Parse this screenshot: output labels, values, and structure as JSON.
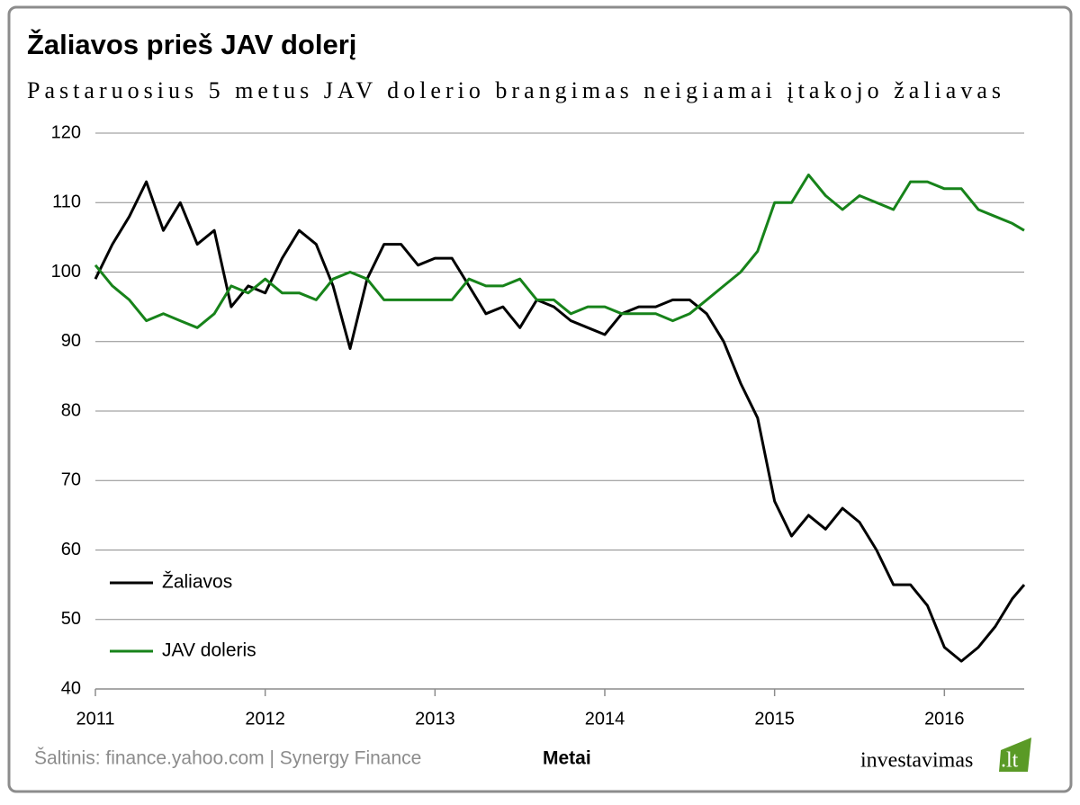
{
  "chart_data": {
    "type": "line",
    "title": "Žaliavos prieš JAV dolerį",
    "subtitle": "Pastaruosius 5 metus JAV dolerio brangimas neigiamai įtakojo žaliavas",
    "x_label": "Metai",
    "source": "Šaltinis: finance.yahoo.com | Synergy Finance",
    "brand": "investavimas",
    "brand_tld": ".lt",
    "x": [
      2011.0,
      2011.1,
      2011.2,
      2011.3,
      2011.4,
      2011.5,
      2011.6,
      2011.7,
      2011.8,
      2011.9,
      2012.0,
      2012.1,
      2012.2,
      2012.3,
      2012.4,
      2012.5,
      2012.6,
      2012.7,
      2012.8,
      2012.9,
      2013.0,
      2013.1,
      2013.2,
      2013.3,
      2013.4,
      2013.5,
      2013.6,
      2013.7,
      2013.8,
      2013.9,
      2014.0,
      2014.1,
      2014.2,
      2014.3,
      2014.4,
      2014.5,
      2014.6,
      2014.7,
      2014.8,
      2014.9,
      2015.0,
      2015.1,
      2015.2,
      2015.3,
      2015.4,
      2015.5,
      2015.6,
      2015.7,
      2015.8,
      2015.9,
      2016.0,
      2016.1,
      2016.2,
      2016.3,
      2016.4,
      2016.47
    ],
    "series": [
      {
        "name": "Žaliavos",
        "color": "#000000",
        "values": [
          99,
          104,
          108,
          113,
          106,
          110,
          104,
          106,
          95,
          98,
          97,
          102,
          106,
          104,
          98,
          89,
          99,
          104,
          104,
          101,
          102,
          102,
          98,
          94,
          95,
          92,
          96,
          95,
          93,
          92,
          91,
          94,
          95,
          95,
          96,
          96,
          94,
          90,
          84,
          79,
          67,
          62,
          65,
          63,
          66,
          64,
          60,
          55,
          55,
          52,
          46,
          44,
          46,
          49,
          53,
          55
        ]
      },
      {
        "name": "JAV doleris",
        "color": "#17831a",
        "values": [
          101,
          98,
          96,
          93,
          94,
          93,
          92,
          94,
          98,
          97,
          99,
          97,
          97,
          96,
          99,
          100,
          99,
          96,
          96,
          96,
          96,
          96,
          99,
          98,
          98,
          99,
          96,
          96,
          94,
          95,
          95,
          94,
          94,
          94,
          93,
          94,
          96,
          98,
          100,
          103,
          110,
          110,
          114,
          111,
          109,
          111,
          110,
          109,
          113,
          113,
          112,
          112,
          109,
          108,
          107,
          106
        ]
      }
    ],
    "xlim": [
      2011,
      2016.47
    ],
    "xticks": [
      2011,
      2012,
      2013,
      2014,
      2015,
      2016
    ],
    "ylim": [
      40,
      120
    ],
    "yticks": [
      40,
      50,
      60,
      70,
      80,
      90,
      100,
      110,
      120
    ],
    "grid": true,
    "legend": "lower-left"
  }
}
